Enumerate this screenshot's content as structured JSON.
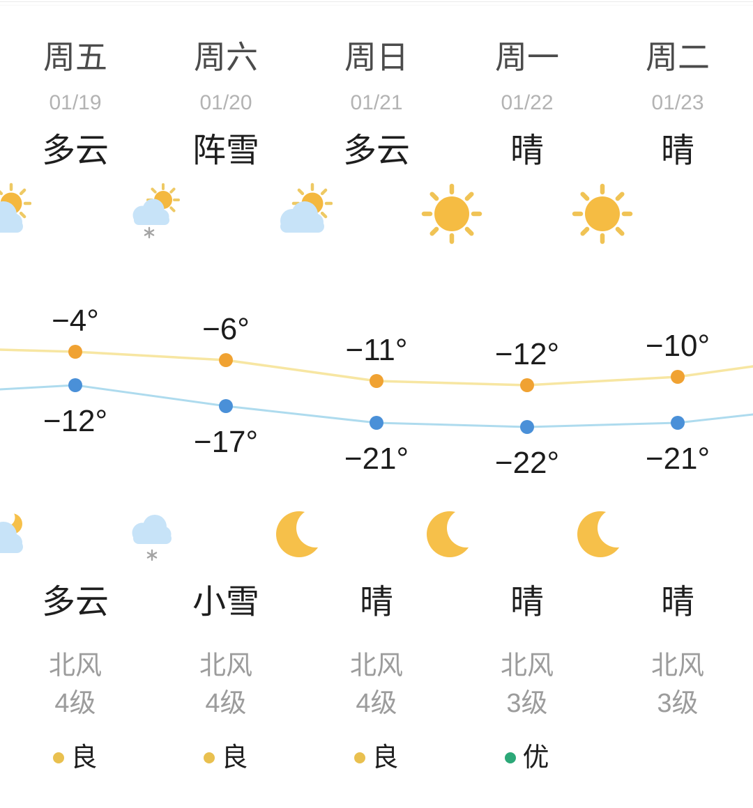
{
  "days": [
    {
      "name": "周五",
      "date": "01/19",
      "day_condition": "多云",
      "day_icon": "partly-cloudy-day",
      "high_temp": -4,
      "low_temp": -12,
      "night_icon": "cloudy-moon-night",
      "night_condition": "多云",
      "wind_direction": "北风",
      "wind_level": "4级",
      "aqi_label": "良",
      "aqi_color": "#e9c04f"
    },
    {
      "name": "周六",
      "date": "01/20",
      "day_condition": "阵雪",
      "day_icon": "sun-snow-shower-day",
      "high_temp": -6,
      "low_temp": -17,
      "night_icon": "snow-cloud-night",
      "night_condition": "小雪",
      "wind_direction": "北风",
      "wind_level": "4级",
      "aqi_label": "良",
      "aqi_color": "#e9c04f"
    },
    {
      "name": "周日",
      "date": "01/21",
      "day_condition": "多云",
      "day_icon": "partly-cloudy-day",
      "high_temp": -11,
      "low_temp": -21,
      "night_icon": "crescent-moon-night",
      "night_condition": "晴",
      "wind_direction": "北风",
      "wind_level": "4级",
      "aqi_label": "良",
      "aqi_color": "#e9c04f"
    },
    {
      "name": "周一",
      "date": "01/22",
      "day_condition": "晴",
      "day_icon": "sunny-day",
      "high_temp": -12,
      "low_temp": -22,
      "night_icon": "crescent-moon-night",
      "night_condition": "晴",
      "wind_direction": "北风",
      "wind_level": "3级",
      "aqi_label": "优",
      "aqi_color": "#2ca878"
    },
    {
      "name": "周二",
      "date": "01/23",
      "day_condition": "晴",
      "day_icon": "sunny-day",
      "high_temp": -10,
      "low_temp": -21,
      "night_icon": "crescent-moon-night",
      "night_condition": "晴",
      "wind_direction": "北风",
      "wind_level": "3级",
      "aqi_label": null,
      "aqi_color": null
    }
  ],
  "chart_data": {
    "type": "line",
    "categories": [
      "周五 01/19",
      "周六 01/20",
      "周日 01/21",
      "周一 01/22",
      "周二 01/23"
    ],
    "series": [
      {
        "name": "high",
        "values": [
          -4,
          -6,
          -11,
          -12,
          -10
        ],
        "labels": [
          "−4°",
          "−6°",
          "−11°",
          "−12°",
          "−10°"
        ],
        "line_color": "#f7e6a2",
        "dot_color": "#f0a232"
      },
      {
        "name": "low",
        "values": [
          -12,
          -17,
          -21,
          -22,
          -21
        ],
        "labels": [
          "−12°",
          "−17°",
          "−21°",
          "−22°",
          "−21°"
        ],
        "line_color": "#aedbee",
        "dot_color": "#4a90d8"
      }
    ],
    "edge_continuation": {
      "left_high": -3.5,
      "left_low": -13,
      "right_high": -7.5,
      "right_low": -19
    },
    "unit": "°C",
    "grid": false,
    "legend": "none",
    "label_color": "#1c1c1c"
  },
  "icon_colors": {
    "cloud": "#c7e3f8",
    "sun": "#f4b83f",
    "sun_big": "#f5bc43",
    "sun_rays": "#eec964",
    "moon": "#f6c04a",
    "snowflake": "#a3a3a3"
  }
}
